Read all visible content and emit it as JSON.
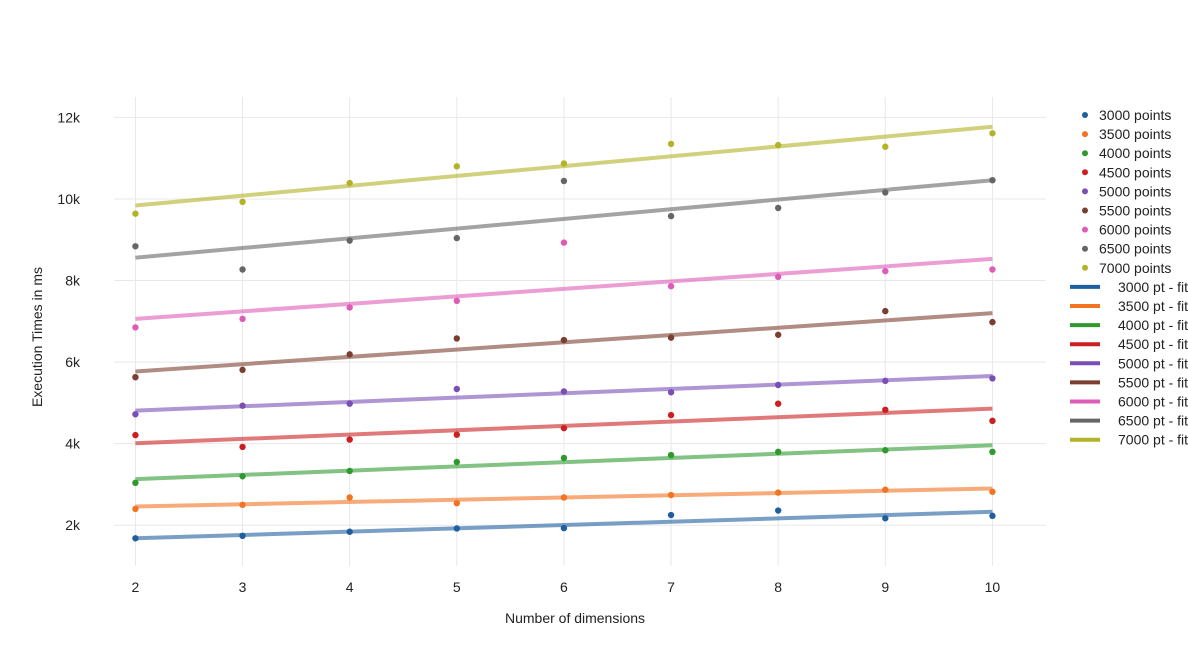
{
  "chart_data": {
    "type": "scatter",
    "title": "",
    "xlabel": "Number of dimensions",
    "ylabel": "Execution Times in ms",
    "xlim": [
      1.8,
      10.5
    ],
    "ylim": [
      1000,
      12500
    ],
    "x_ticks": [
      2,
      3,
      4,
      5,
      6,
      7,
      8,
      9,
      10
    ],
    "y_ticks": [
      2000,
      4000,
      6000,
      8000,
      10000,
      12000
    ],
    "y_tick_labels": [
      "2k",
      "4k",
      "6k",
      "8k",
      "10k",
      "12k"
    ],
    "grid": true,
    "legend_position": "right",
    "x": [
      2,
      3,
      4,
      5,
      6,
      7,
      8,
      9,
      10
    ],
    "series": [
      {
        "name": "3000 points",
        "color": "#1f5fa0",
        "values": [
          1680,
          1740,
          1840,
          1920,
          1930,
          2250,
          2360,
          2170,
          2230
        ]
      },
      {
        "name": "3500 points",
        "color": "#f27321",
        "values": [
          2400,
          2500,
          2680,
          2540,
          2680,
          2740,
          2800,
          2870,
          2820
        ]
      },
      {
        "name": "4000 points",
        "color": "#2e9a2e",
        "values": [
          3040,
          3200,
          3330,
          3550,
          3650,
          3720,
          3800,
          3840,
          3800
        ]
      },
      {
        "name": "4500 points",
        "color": "#cc1f1f",
        "values": [
          4210,
          3920,
          4100,
          4220,
          4380,
          4700,
          4980,
          4830,
          4560
        ]
      },
      {
        "name": "5000 points",
        "color": "#7a4fb5",
        "values": [
          4720,
          4930,
          4980,
          5340,
          5280,
          5260,
          5440,
          5540,
          5600
        ]
      },
      {
        "name": "5500 points",
        "color": "#7b3f31",
        "values": [
          5630,
          5810,
          6190,
          6580,
          6540,
          6600,
          6670,
          7250,
          6980
        ]
      },
      {
        "name": "6000 points",
        "color": "#dd5cb8",
        "values": [
          6850,
          7060,
          7340,
          7500,
          8930,
          7860,
          8090,
          8230,
          8270
        ]
      },
      {
        "name": "6500 points",
        "color": "#666666",
        "values": [
          8840,
          8270,
          8980,
          9040,
          10440,
          9580,
          9780,
          10160,
          10460
        ]
      },
      {
        "name": "7000 points",
        "color": "#b3b327",
        "values": [
          9640,
          9930,
          10390,
          10800,
          10870,
          11350,
          11320,
          11280,
          11610
        ]
      }
    ],
    "fits": [
      {
        "name": "3000 pt - fit",
        "color": "#1f5fa0",
        "start": 1680,
        "end": 2330
      },
      {
        "name": "3500 pt - fit",
        "color": "#f27321",
        "start": 2460,
        "end": 2900
      },
      {
        "name": "4000 pt - fit",
        "color": "#2e9a2e",
        "start": 3130,
        "end": 3960
      },
      {
        "name": "4500 pt - fit",
        "color": "#cc1f1f",
        "start": 4010,
        "end": 4860
      },
      {
        "name": "5000 pt - fit",
        "color": "#7a4fb5",
        "start": 4810,
        "end": 5660
      },
      {
        "name": "5500 pt - fit",
        "color": "#7b3f31",
        "start": 5770,
        "end": 7200
      },
      {
        "name": "6000 pt - fit",
        "color": "#dd5cb8",
        "start": 7060,
        "end": 8530
      },
      {
        "name": "6500 pt - fit",
        "color": "#666666",
        "start": 8560,
        "end": 10460
      },
      {
        "name": "7000 pt - fit",
        "color": "#b3b327",
        "start": 9840,
        "end": 11770
      }
    ]
  }
}
